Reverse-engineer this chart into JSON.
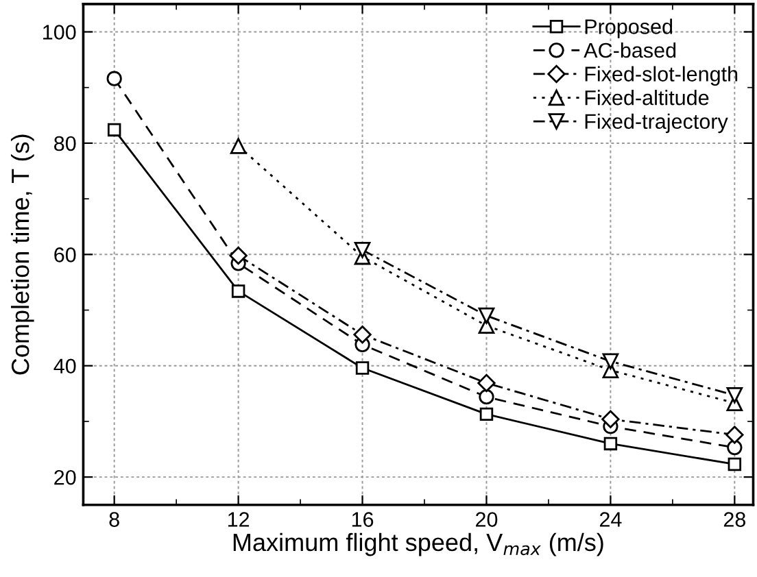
{
  "chart_data": {
    "type": "line",
    "xlabel": "Maximum flight speed, V$_{max}$ (m/s)",
    "ylabel": "Completion time, T (s)",
    "x": [
      8,
      12,
      16,
      20,
      24,
      28
    ],
    "series": [
      {
        "name": "Proposed",
        "color": "#000000",
        "marker": "square",
        "line_style": "solid",
        "values": [
          82.4,
          53.4,
          39.6,
          31.3,
          26.0,
          22.3
        ]
      },
      {
        "name": "AC-based",
        "color": "#000000",
        "marker": "circle",
        "line_style": "dashed",
        "values": [
          91.6,
          58.4,
          43.8,
          34.4,
          29.1,
          25.3
        ]
      },
      {
        "name": "Fixed-slot-length",
        "color": "#000000",
        "marker": "diamond",
        "line_style": "dashdot",
        "values": [
          null,
          59.8,
          45.6,
          36.9,
          30.4,
          27.6
        ]
      },
      {
        "name": "Fixed-altitude",
        "color": "#000000",
        "marker": "triangle",
        "line_style": "dotted",
        "values": [
          null,
          79.5,
          59.6,
          47.2,
          39.2,
          33.3
        ]
      },
      {
        "name": "Fixed-trajectory",
        "color": "#000000",
        "marker": "triangle_down",
        "line_style": "dashdot",
        "values": [
          null,
          null,
          60.8,
          49.0,
          40.8,
          34.7
        ]
      }
    ],
    "xlim": [
      7,
      28.6
    ],
    "xticks": [
      8,
      12,
      16,
      20,
      24,
      28
    ],
    "ylim": [
      15,
      105
    ],
    "yticks": [
      20,
      40,
      60,
      80,
      100
    ],
    "grid": true,
    "legend": "top right"
  }
}
